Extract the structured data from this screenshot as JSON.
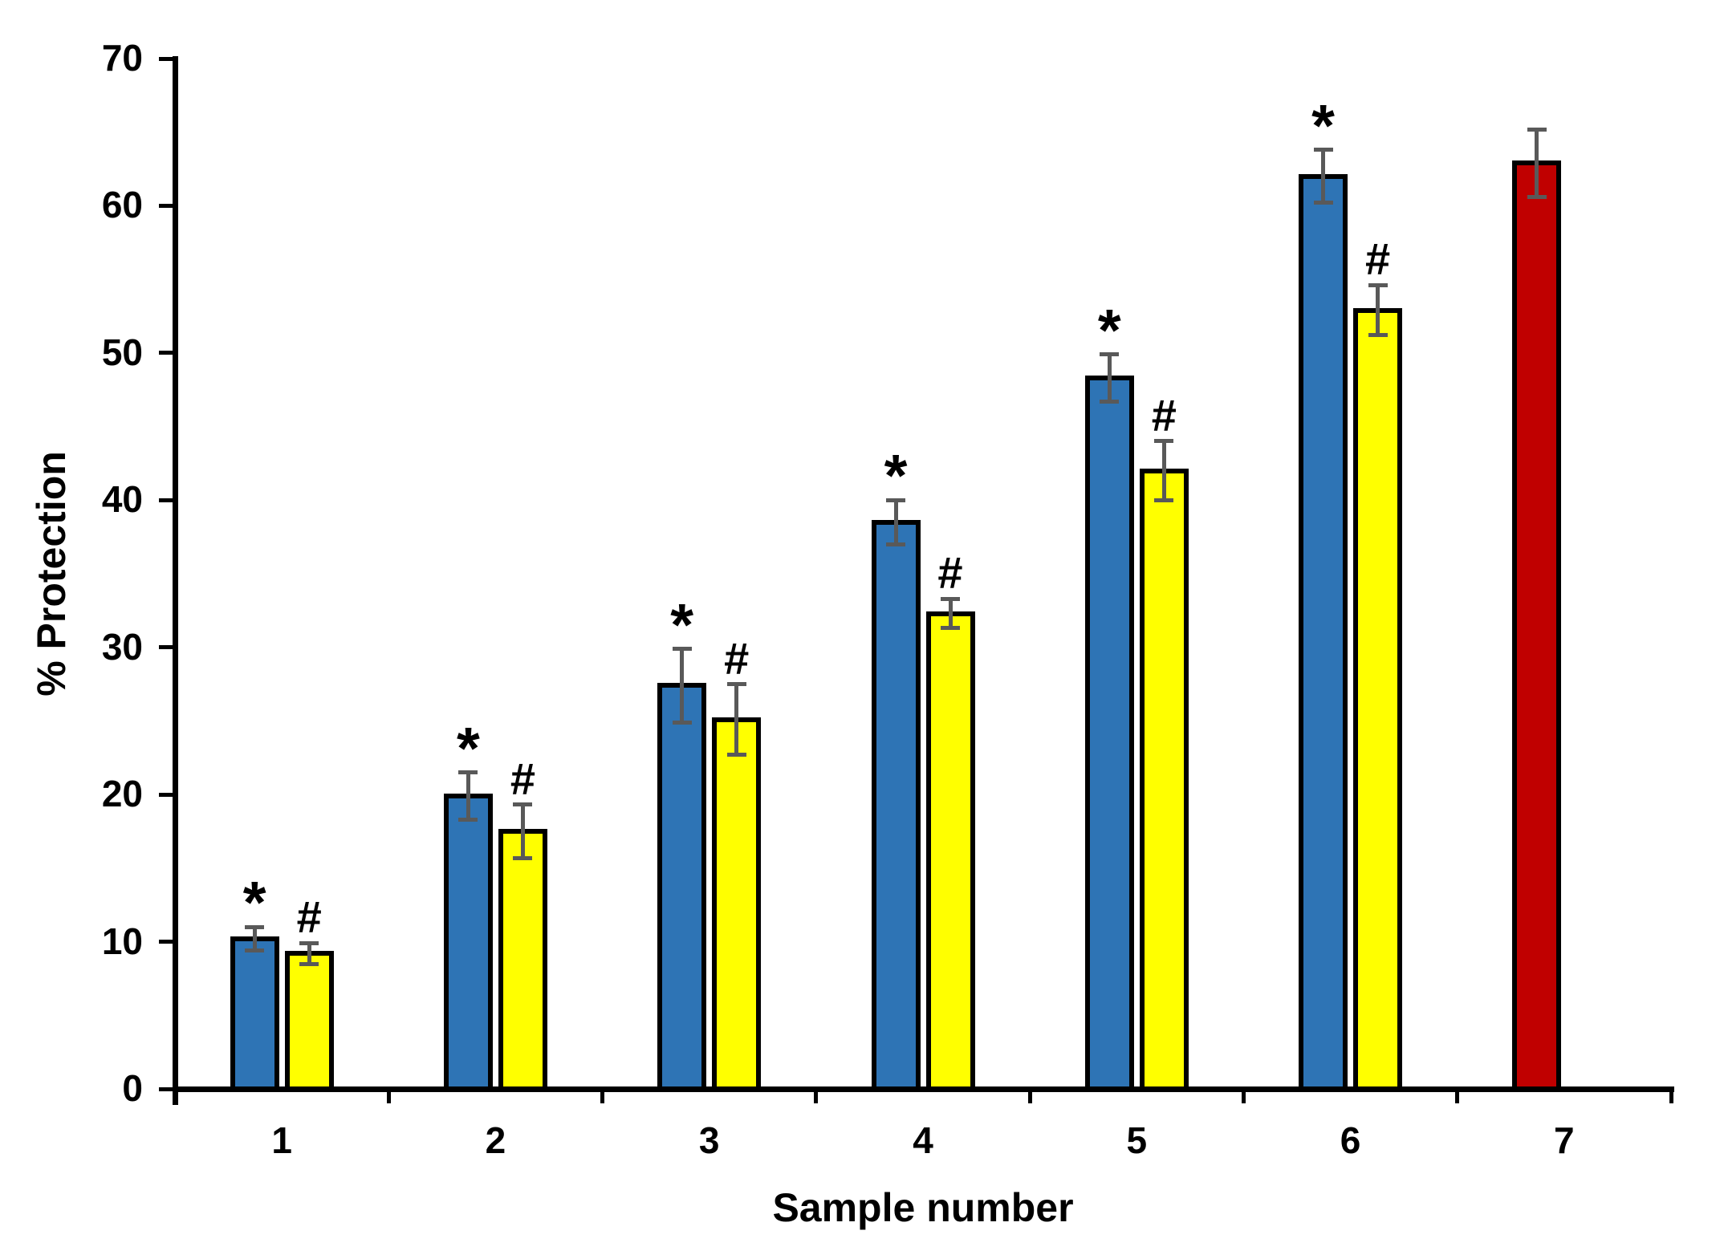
{
  "chart_data": {
    "type": "bar",
    "title": "",
    "xlabel": "Sample number",
    "ylabel": "% Protection",
    "ylim": [
      0,
      70
    ],
    "yticks": [
      0,
      10,
      20,
      30,
      40,
      50,
      60,
      70
    ],
    "categories": [
      "1",
      "2",
      "3",
      "4",
      "5",
      "6",
      "7"
    ],
    "grid": false,
    "legend": "none",
    "background_color": "#FFFFFF",
    "axis_color": "#000000",
    "error_bar_color": "#595959",
    "series": [
      {
        "name": "blue-bars",
        "color": "#2E74B5",
        "slot": 0,
        "annotation": "*",
        "values": [
          10.2,
          19.9,
          27.4,
          38.5,
          48.3,
          62.0,
          null
        ],
        "errors": [
          0.8,
          1.6,
          2.5,
          1.5,
          1.6,
          1.8,
          null
        ]
      },
      {
        "name": "yellow-bars",
        "color": "#FFFF00",
        "slot": 1,
        "annotation": "#",
        "values": [
          9.2,
          17.5,
          25.1,
          32.3,
          42.0,
          52.9,
          null
        ],
        "errors": [
          0.7,
          1.8,
          2.4,
          1.0,
          2.0,
          1.7,
          null
        ]
      },
      {
        "name": "red-bar",
        "color": "#C00000",
        "slot": 0,
        "annotation": "",
        "values": [
          null,
          null,
          null,
          null,
          null,
          null,
          62.9
        ],
        "errors": [
          null,
          null,
          null,
          null,
          null,
          null,
          2.3
        ]
      }
    ]
  }
}
